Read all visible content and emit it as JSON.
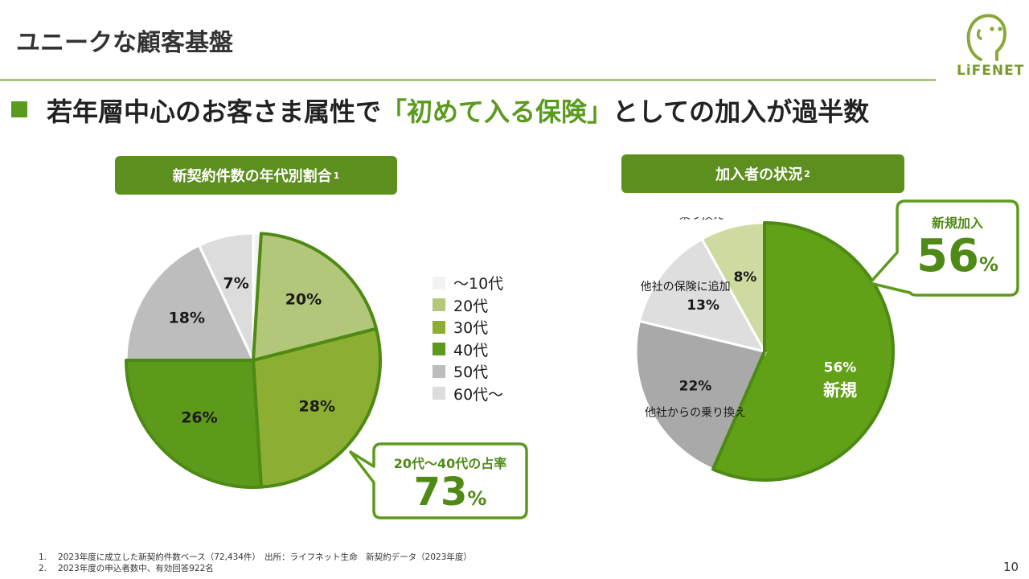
{
  "page": {
    "title": "ユニークな顧客基盤",
    "headline_pre": "若年層中心のお客さま属性で",
    "headline_accent": "「初めて入る保険」",
    "headline_post": "としての加入が過半数",
    "logo_text": "LiFENET",
    "page_number": "10"
  },
  "left_chart": {
    "header_label": "新契約件数の年代別割合",
    "header_note": "1",
    "callout": {
      "label": "20代～40代の占率",
      "value": "73",
      "unit": "%"
    }
  },
  "right_chart": {
    "header_label": "加入者の状況",
    "header_note": "2",
    "callout": {
      "label": "新規加入",
      "value": "56",
      "unit": "%"
    }
  },
  "chart_data": [
    {
      "type": "pie",
      "title": "新契約件数の年代別割合",
      "categories": [
        "～10代",
        "20代",
        "30代",
        "40代",
        "50代",
        "60代～"
      ],
      "values": [
        1,
        20,
        28,
        26,
        18,
        7
      ],
      "data_labels": [
        "",
        "20%",
        "28%",
        "26%",
        "18%",
        "7%"
      ],
      "colors": [
        "#f2f2f2",
        "#b3c77a",
        "#8cae33",
        "#5d9a1c",
        "#bdbdbd",
        "#dcdcdc"
      ],
      "legend": "right",
      "highlighted": [
        "20代",
        "30代",
        "40代"
      ]
    },
    {
      "type": "pie",
      "title": "加入者の状況",
      "categories": [
        "新規",
        "他社からの乗り換え",
        "他社の保険に追加",
        "既契約者の追加・乗り換え"
      ],
      "values": [
        56,
        22,
        13,
        8
      ],
      "data_labels": [
        "56%",
        "22%",
        "13%",
        "8%"
      ],
      "slice_texts": [
        "新規",
        "他社からの乗り換え",
        "他社の保険に追加",
        "既契約者の追加・乗り換え"
      ],
      "colors": [
        "#61a017",
        "#a9a9a9",
        "#dedede",
        "#cddba0"
      ],
      "highlighted": [
        "新規"
      ]
    }
  ],
  "footnotes": [
    {
      "num": "1.",
      "text": "2023年度に成立した新契約件数ベース（72,434件）　出所：ライフネット生命　新契約データ（2023年度）"
    },
    {
      "num": "2.",
      "text": "2023年度の申込者数中、有効回答922名"
    }
  ]
}
